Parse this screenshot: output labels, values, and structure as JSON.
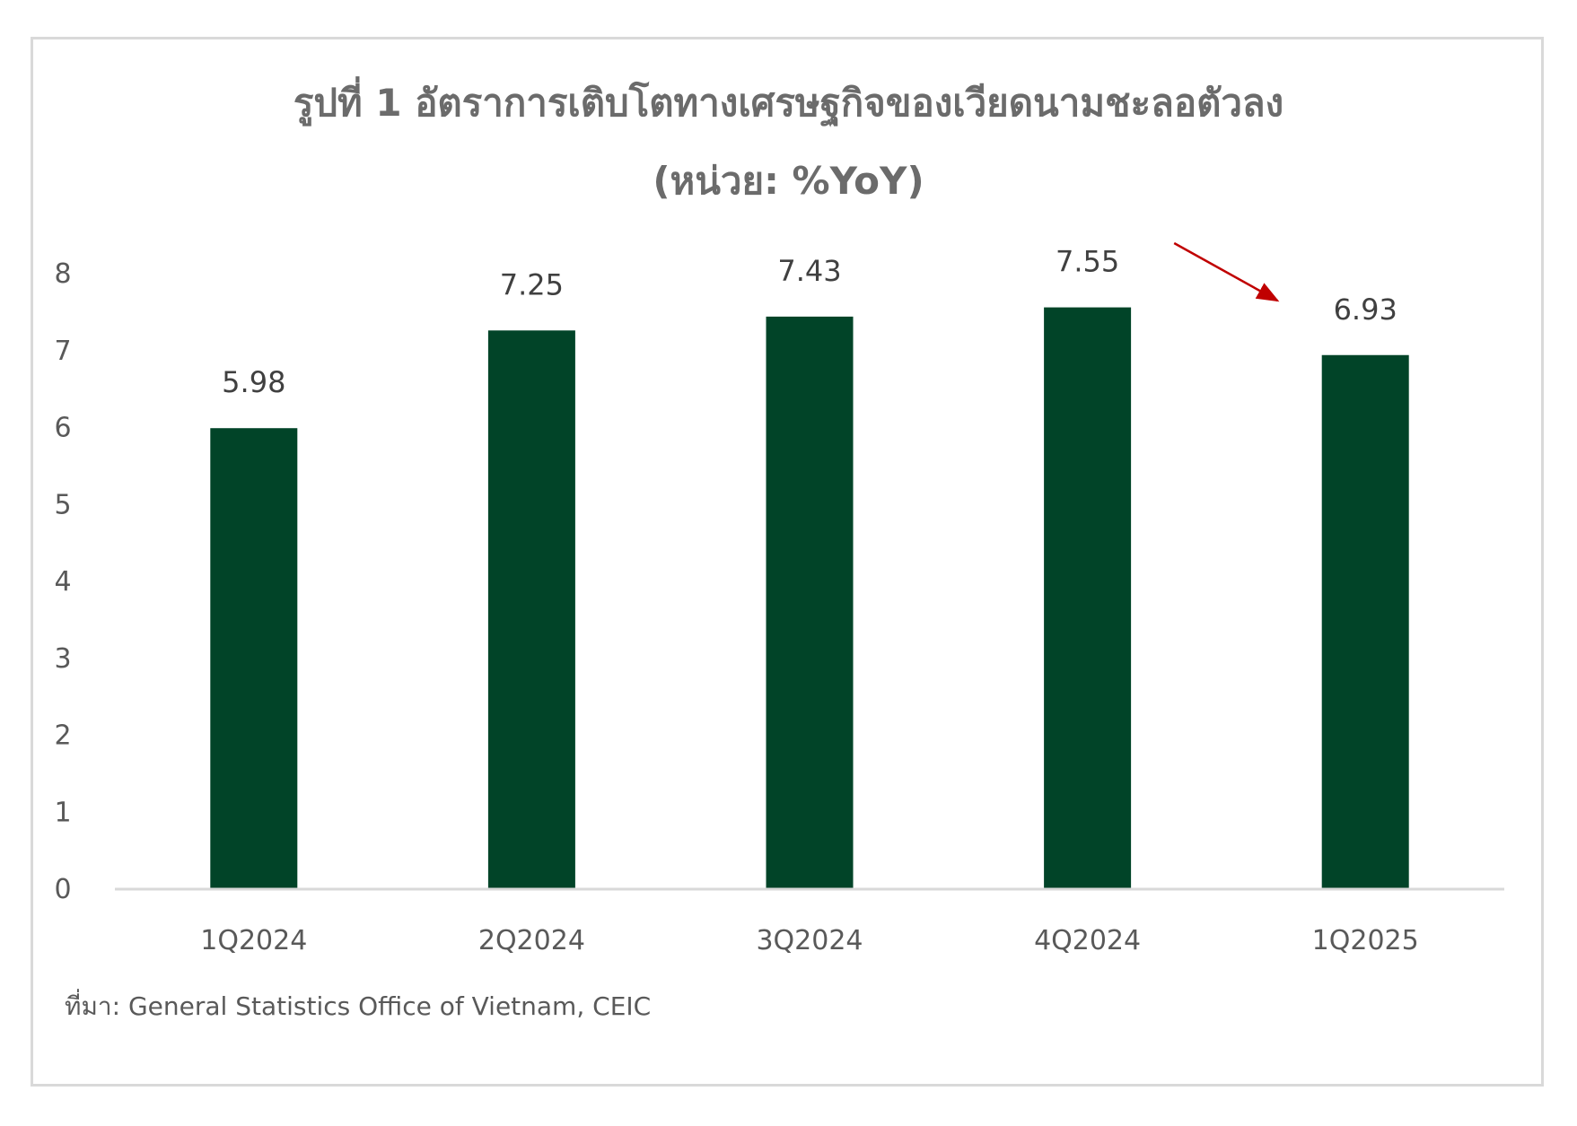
{
  "title_line1": "รูปที่ 1 อัตราการเติบโตทางเศรษฐกิจของเวียดนามชะลอตัวลง",
  "title_line2": "(หน่วย: %YoY)",
  "source": "ที่มา: General Statistics Office of Vietnam, CEIC",
  "colors": {
    "bar": "#014428",
    "axis": "#d9d9d9",
    "arrow": "#c00000",
    "title": "#6b6b6b"
  },
  "chart_data": {
    "type": "bar",
    "title": "รูปที่ 1 อัตราการเติบโตทางเศรษฐกิจของเวียดนามชะลอตัวลง",
    "subtitle": "(หน่วย: %YoY)",
    "categories": [
      "1Q2024",
      "2Q2024",
      "3Q2024",
      "4Q2024",
      "1Q2025"
    ],
    "values": [
      5.98,
      7.25,
      7.43,
      7.55,
      6.93
    ],
    "data_labels": [
      "5.98",
      "7.25",
      "7.43",
      "7.55",
      "6.93"
    ],
    "ylim": [
      0,
      8
    ],
    "yticks": [
      0,
      1,
      2,
      3,
      4,
      5,
      6,
      7,
      8
    ],
    "grid": false,
    "legend": "none",
    "annotation": "arrow-pointing-down-toward-1Q2025"
  }
}
